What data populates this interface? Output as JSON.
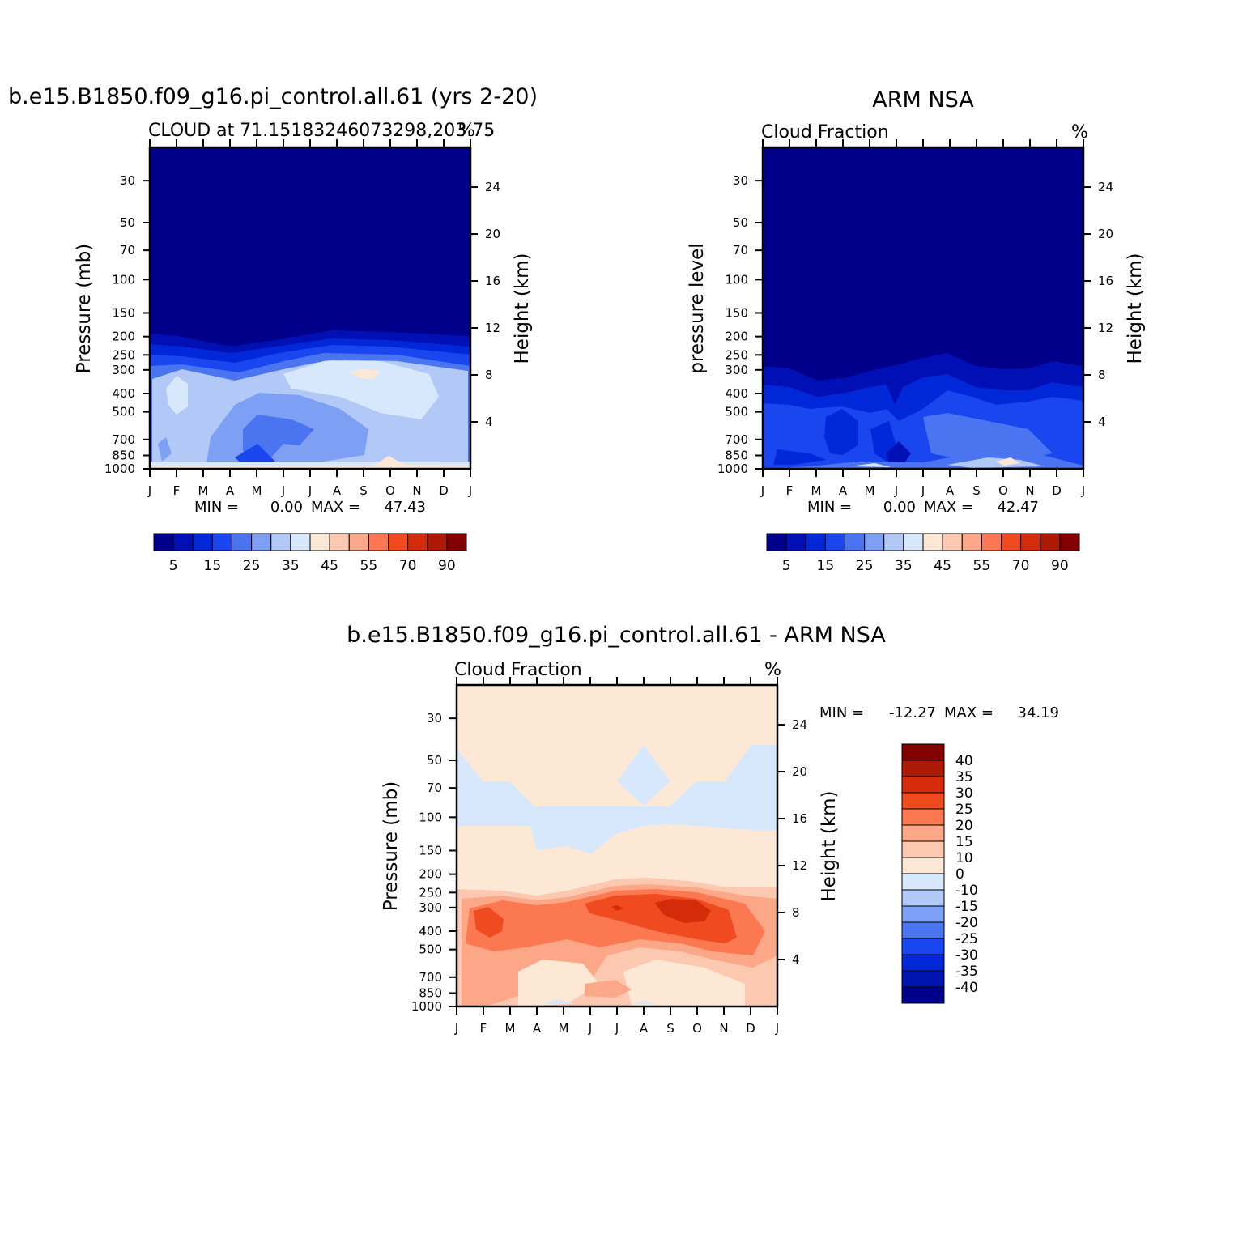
{
  "chart_data": [
    {
      "id": "panel_model",
      "type": "heatmap",
      "title": "b.e15.B1850.f09_g16.pi_control.all.61 (yrs 2-20)",
      "subtitle_left": "CLOUD at 71.15183246073298,203.75",
      "subtitle_right": "%",
      "ylabel": "Pressure (mb)",
      "ylabel_right": "Height (km)",
      "x_ticks": [
        "J",
        "F",
        "M",
        "A",
        "M",
        "J",
        "J",
        "A",
        "S",
        "O",
        "N",
        "D",
        "J"
      ],
      "y_ticks": [
        "30",
        "50",
        "70",
        "100",
        "150",
        "200",
        "250",
        "300",
        "400",
        "500",
        "700",
        "850",
        "1000"
      ],
      "y_ticks_right": [
        "24",
        "20",
        "16",
        "12",
        "8",
        "4"
      ],
      "ylim": [
        1000,
        20
      ],
      "y_scale": "log",
      "min_label": "MIN =",
      "min_value": "0.00",
      "max_label": "MAX =",
      "max_value": "47.43",
      "colorbar_labels": [
        "5",
        "15",
        "25",
        "35",
        "45",
        "55",
        "70",
        "90"
      ]
    },
    {
      "id": "panel_obs",
      "type": "heatmap",
      "title": "ARM NSA",
      "subtitle_left": "Cloud Fraction",
      "subtitle_right": "%",
      "ylabel": "pressure level",
      "ylabel_right": "Height (km)",
      "x_ticks": [
        "J",
        "F",
        "M",
        "A",
        "M",
        "J",
        "J",
        "A",
        "S",
        "O",
        "N",
        "D",
        "J"
      ],
      "y_ticks": [
        "30",
        "50",
        "70",
        "100",
        "150",
        "200",
        "250",
        "300",
        "400",
        "500",
        "700",
        "850",
        "1000"
      ],
      "y_ticks_right": [
        "24",
        "20",
        "16",
        "12",
        "8",
        "4"
      ],
      "ylim": [
        1000,
        20
      ],
      "y_scale": "log",
      "min_label": "MIN =",
      "min_value": "0.00",
      "max_label": "MAX =",
      "max_value": "42.47",
      "colorbar_labels": [
        "5",
        "15",
        "25",
        "35",
        "45",
        "55",
        "70",
        "90"
      ]
    },
    {
      "id": "panel_diff",
      "type": "heatmap",
      "title": "b.e15.B1850.f09_g16.pi_control.all.61 - ARM NSA",
      "subtitle_left": "Cloud Fraction",
      "subtitle_right": "%",
      "ylabel": "Pressure (mb)",
      "ylabel_right": "Height (km)",
      "x_ticks": [
        "J",
        "F",
        "M",
        "A",
        "M",
        "J",
        "J",
        "A",
        "S",
        "O",
        "N",
        "D",
        "J"
      ],
      "y_ticks": [
        "30",
        "50",
        "70",
        "100",
        "150",
        "200",
        "250",
        "300",
        "400",
        "500",
        "700",
        "850",
        "1000"
      ],
      "y_ticks_right": [
        "24",
        "20",
        "16",
        "12",
        "8",
        "4"
      ],
      "ylim": [
        1000,
        20
      ],
      "y_scale": "log",
      "min_label": "MIN =",
      "min_value": "-12.27",
      "max_label": "MAX =",
      "max_value": "34.19",
      "colorbar_labels": [
        "40",
        "35",
        "30",
        "25",
        "20",
        "15",
        "10",
        "0",
        "-10",
        "-15",
        "-20",
        "-25",
        "-30",
        "-35",
        "-40"
      ]
    }
  ],
  "colors": {
    "seq": [
      "#00008b",
      "#0010b4",
      "#0028d8",
      "#1a46f0",
      "#4a74f0",
      "#7ea0f4",
      "#b2c8f6",
      "#d8e8fc",
      "#fde8d6",
      "#fcc8b0",
      "#fca788",
      "#fb7850",
      "#f04a20",
      "#d42c0a",
      "#ac1a06",
      "#820000"
    ],
    "div": [
      "#00008b",
      "#0014b0",
      "#0028d8",
      "#1a46f0",
      "#4a74f0",
      "#7ea0f4",
      "#b2c8f6",
      "#d8e8fc",
      "#fde8d6",
      "#fcc8b0",
      "#fca788",
      "#fb7850",
      "#f04a20",
      "#d42c0a",
      "#ac1a06",
      "#820000"
    ]
  }
}
